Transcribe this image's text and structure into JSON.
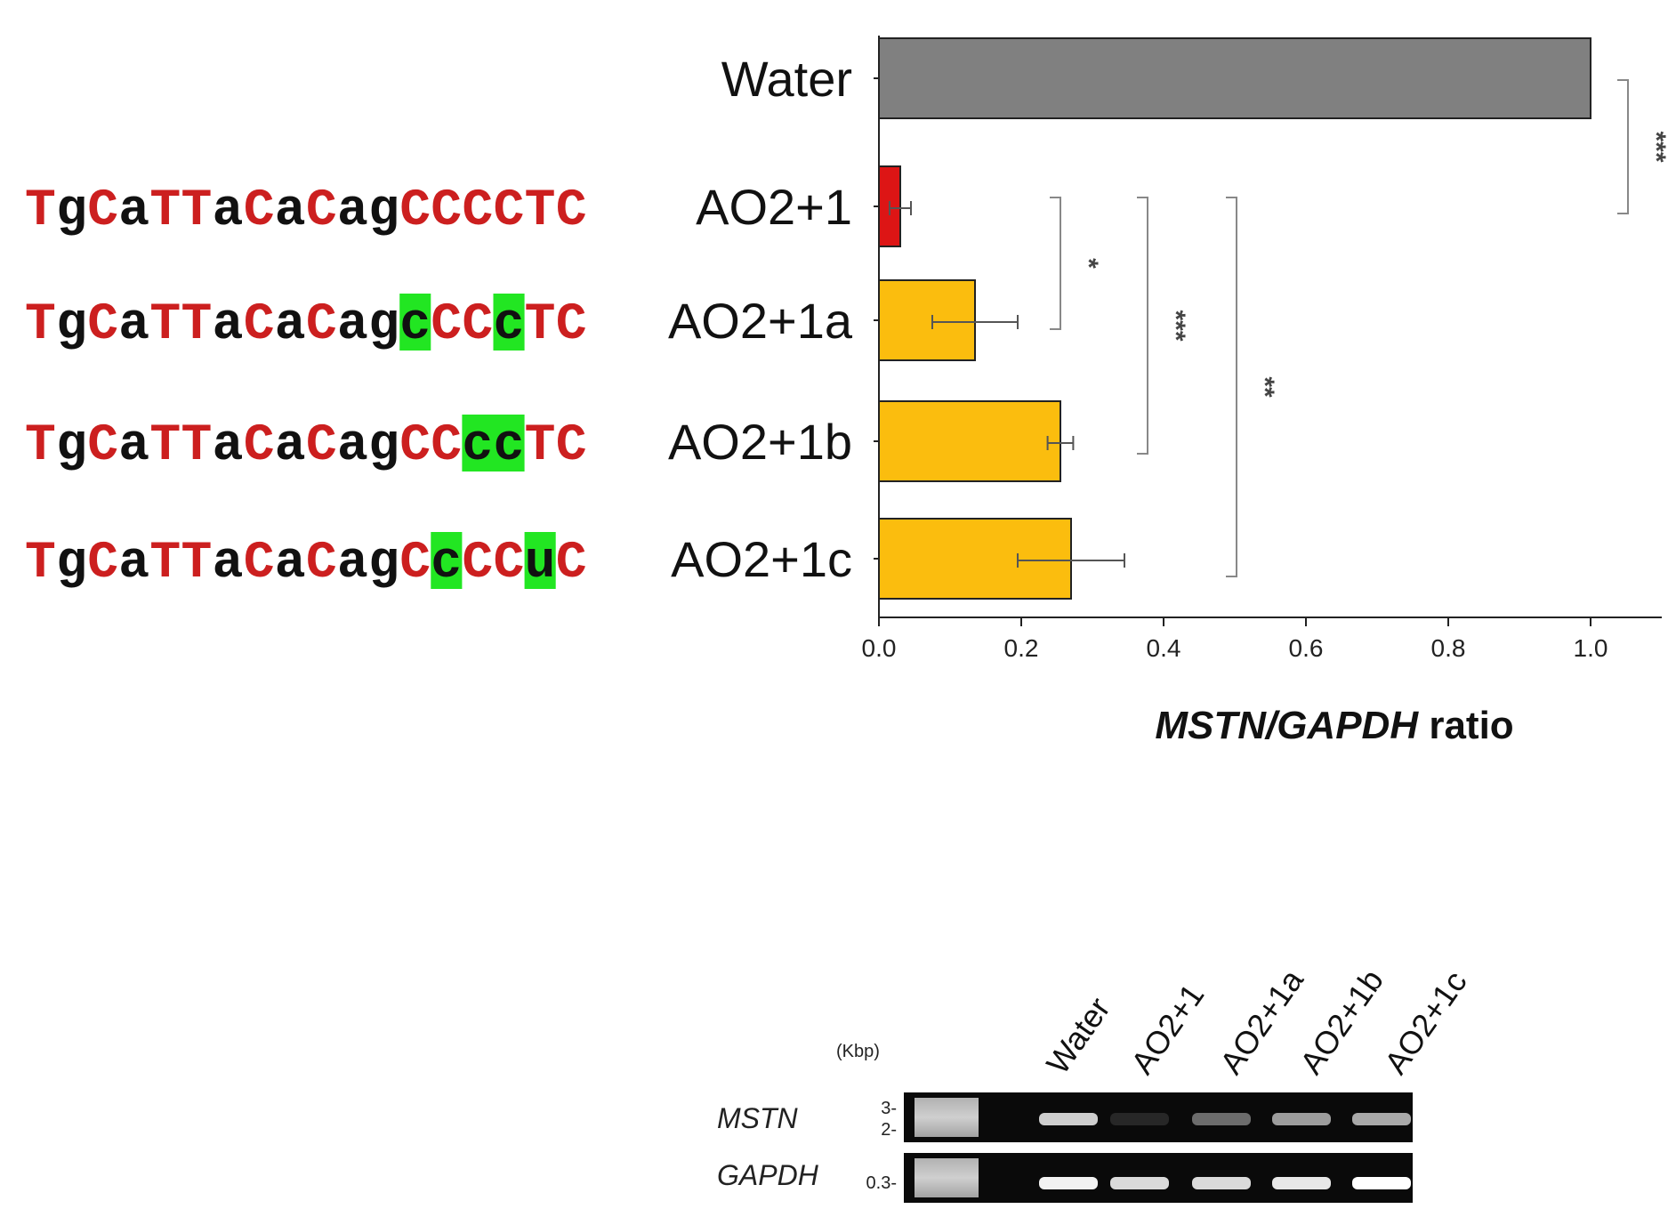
{
  "chart_data": {
    "type": "bar",
    "orientation": "horizontal",
    "categories": [
      "Water",
      "AO2+1",
      "AO2+1a",
      "AO2+1b",
      "AO2+1c"
    ],
    "values": [
      1.0,
      0.03,
      0.135,
      0.255,
      0.27
    ],
    "errors": [
      0.0,
      0.015,
      0.06,
      0.018,
      0.075
    ],
    "colors": [
      "#808080",
      "#dd1515",
      "#fbbd0e",
      "#fbbd0e",
      "#fbbd0e"
    ],
    "xlabel_italic": "MSTN/GAPDH",
    "xlabel_plain": " ratio",
    "xlim": [
      0,
      1.1
    ],
    "xticks": [
      "0.0",
      "0.2",
      "0.4",
      "0.6",
      "0.8",
      "1.0"
    ],
    "xtick_values": [
      0,
      0.2,
      0.4,
      0.6,
      0.8,
      1.0
    ],
    "significance": [
      {
        "from": "Water",
        "to": "AO2+1",
        "label": "***"
      },
      {
        "from": "AO2+1",
        "to": "AO2+1a",
        "label": "*"
      },
      {
        "from": "AO2+1",
        "to": "AO2+1b",
        "label": "***"
      },
      {
        "from": "AO2+1",
        "to": "AO2+1c",
        "label": "**"
      }
    ]
  },
  "sequences": [
    {
      "row": "AO2+1",
      "chars": [
        "T",
        "g",
        "C",
        "a",
        "T",
        "T",
        "a",
        "C",
        "a",
        "C",
        "a",
        "g",
        "C",
        "C",
        "C",
        "C",
        "T",
        "C"
      ],
      "highlight": []
    },
    {
      "row": "AO2+1a",
      "chars": [
        "T",
        "g",
        "C",
        "a",
        "T",
        "T",
        "a",
        "C",
        "a",
        "C",
        "a",
        "g",
        "c",
        "C",
        "C",
        "c",
        "T",
        "C"
      ],
      "highlight": [
        12,
        15
      ]
    },
    {
      "row": "AO2+1b",
      "chars": [
        "T",
        "g",
        "C",
        "a",
        "T",
        "T",
        "a",
        "C",
        "a",
        "C",
        "a",
        "g",
        "C",
        "C",
        "c",
        "c",
        "T",
        "C"
      ],
      "highlight": [
        14,
        15
      ]
    },
    {
      "row": "AO2+1c",
      "chars": [
        "T",
        "g",
        "C",
        "a",
        "T",
        "T",
        "a",
        "C",
        "a",
        "C",
        "a",
        "g",
        "C",
        "c",
        "C",
        "C",
        "u",
        "C"
      ],
      "highlight": [
        13,
        16
      ]
    }
  ],
  "colors": {
    "dna": "#cc1f1f",
    "rna": "#111111",
    "highlight": "#22e622",
    "gel": "#0a0a0a"
  },
  "gel": {
    "unit": "(Kbp)",
    "lanes": [
      "Water",
      "AO2+1",
      "AO2+1a",
      "AO2+1b",
      "AO2+1c"
    ],
    "rows": [
      {
        "name": "MSTN",
        "markers": [
          "3-",
          "2-"
        ],
        "band_intensity": [
          0.8,
          0.12,
          0.4,
          0.6,
          0.65
        ]
      },
      {
        "name": "GAPDH",
        "markers": [
          "0.3-"
        ],
        "band_intensity": [
          0.95,
          0.85,
          0.85,
          0.9,
          1.0
        ]
      }
    ]
  }
}
